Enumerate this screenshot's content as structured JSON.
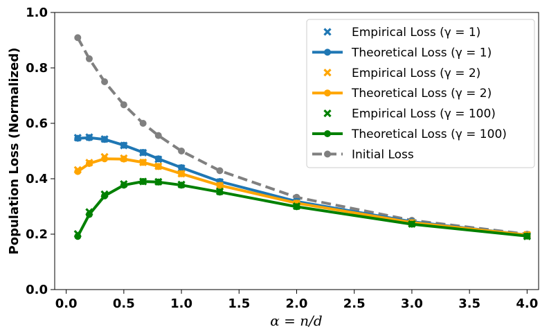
{
  "chart_data": {
    "type": "line",
    "title": "",
    "xlabel": "α = n/d",
    "ylabel": "Population Loss (Normalized)",
    "xlim": [
      -0.1,
      4.1
    ],
    "ylim": [
      0.0,
      1.0
    ],
    "x_ticks": [
      "0.0",
      "0.5",
      "1.0",
      "1.5",
      "2.0",
      "2.5",
      "3.0",
      "3.5",
      "4.0"
    ],
    "y_ticks": [
      "0.0",
      "0.2",
      "0.4",
      "0.6",
      "0.8",
      "1.0"
    ],
    "legend_position": "top-right",
    "x": [
      0.1,
      0.2,
      0.333,
      0.5,
      0.667,
      0.8,
      1.0,
      1.333,
      2.0,
      3.0,
      4.0
    ],
    "series": [
      {
        "name": "Empirical Loss (γ = 1)",
        "kind": "scatter",
        "color": "#1f77b4",
        "values": [
          0.548,
          0.55,
          0.543,
          0.52,
          0.494,
          0.47,
          0.438,
          0.388,
          0.317,
          0.243,
          0.196
        ]
      },
      {
        "name": "Theoretical Loss (γ = 1)",
        "kind": "line",
        "color": "#1f77b4",
        "values": [
          0.546,
          0.548,
          0.542,
          0.521,
          0.495,
          0.472,
          0.44,
          0.39,
          0.318,
          0.245,
          0.197
        ]
      },
      {
        "name": "Empirical Loss (γ = 2)",
        "kind": "scatter",
        "color": "#ffa500",
        "values": [
          0.432,
          0.458,
          0.479,
          0.474,
          0.459,
          0.445,
          0.418,
          0.375,
          0.311,
          0.241,
          0.198
        ]
      },
      {
        "name": "Theoretical Loss (γ = 2)",
        "kind": "line",
        "color": "#ffa500",
        "values": [
          0.426,
          0.455,
          0.472,
          0.471,
          0.459,
          0.444,
          0.418,
          0.376,
          0.312,
          0.242,
          0.197
        ]
      },
      {
        "name": "Empirical Loss (γ = 100)",
        "kind": "scatter",
        "color": "#008000",
        "values": [
          0.201,
          0.28,
          0.344,
          0.381,
          0.39,
          0.389,
          0.379,
          0.354,
          0.301,
          0.237,
          0.192
        ]
      },
      {
        "name": "Theoretical Loss (γ = 100)",
        "kind": "line",
        "color": "#008000",
        "values": [
          0.192,
          0.271,
          0.338,
          0.377,
          0.39,
          0.388,
          0.377,
          0.352,
          0.299,
          0.236,
          0.193
        ]
      },
      {
        "name": "Initial Loss",
        "kind": "dashed",
        "color": "#808080",
        "values": [
          0.909,
          0.833,
          0.75,
          0.667,
          0.6,
          0.556,
          0.5,
          0.429,
          0.333,
          0.25,
          0.2
        ]
      }
    ]
  }
}
